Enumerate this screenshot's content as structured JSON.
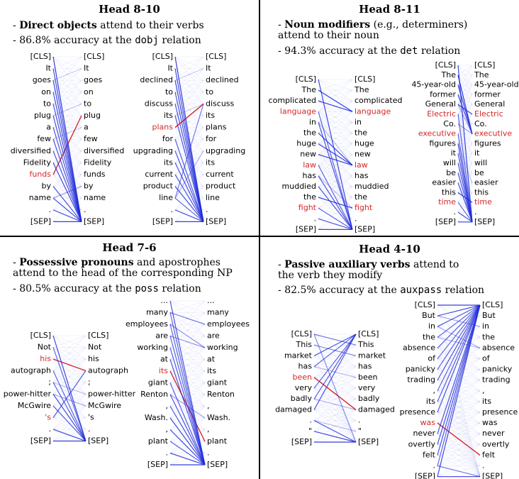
{
  "colors": {
    "attn": "#1f2bd8",
    "highlight": "#d62728",
    "text": "#000000",
    "divider": "#000000"
  },
  "panels": [
    {
      "id": "p1",
      "head_title": "Head 8-10",
      "bullets": [
        {
          "bold": "Direct objects",
          "rest": " attend to their verbs"
        },
        {
          "prefix": "86.8% accuracy at the ",
          "code": "dobj",
          "suffix": " relation"
        }
      ],
      "examples": [
        {
          "tokens": [
            "[CLS]",
            "It",
            "goes",
            "on",
            "to",
            "plug",
            "a",
            "few",
            "diversified",
            "Fidelity",
            "funds",
            "by",
            "name",
            ".",
            "[SEP]"
          ],
          "highlight": 10,
          "edges": [
            [
              10,
              5,
              1.0
            ],
            [
              0,
              14,
              0.9
            ],
            [
              1,
              14,
              0.8
            ],
            [
              2,
              14,
              0.85
            ],
            [
              3,
              14,
              0.8
            ],
            [
              4,
              14,
              0.8
            ],
            [
              5,
              14,
              0.8
            ],
            [
              6,
              14,
              0.75
            ],
            [
              7,
              14,
              0.8
            ],
            [
              8,
              14,
              0.8
            ],
            [
              9,
              14,
              0.85
            ],
            [
              11,
              14,
              0.8
            ],
            [
              12,
              14,
              0.85
            ],
            [
              13,
              14,
              0.8
            ],
            [
              14,
              14,
              0.9
            ],
            [
              12,
              11,
              0.45
            ],
            [
              5,
              4,
              0.25
            ],
            [
              7,
              6,
              0.2
            ],
            [
              2,
              1,
              0.2
            ]
          ]
        },
        {
          "tokens": [
            "[CLS]",
            "It",
            "declined",
            "to",
            "discuss",
            "its",
            "plans",
            "for",
            "upgrading",
            "its",
            "current",
            "product",
            "line",
            ".",
            "[SEP]"
          ],
          "highlight": 6,
          "edges": [
            [
              6,
              4,
              1.0
            ],
            [
              12,
              4,
              0.6
            ],
            [
              0,
              14,
              0.9
            ],
            [
              1,
              14,
              0.8
            ],
            [
              2,
              14,
              0.85
            ],
            [
              3,
              14,
              0.8
            ],
            [
              4,
              14,
              0.8
            ],
            [
              5,
              14,
              0.8
            ],
            [
              7,
              14,
              0.75
            ],
            [
              8,
              14,
              0.8
            ],
            [
              9,
              14,
              0.8
            ],
            [
              10,
              14,
              0.8
            ],
            [
              11,
              14,
              0.85
            ],
            [
              12,
              14,
              0.7
            ],
            [
              13,
              14,
              0.8
            ],
            [
              14,
              14,
              0.9
            ],
            [
              12,
              8,
              0.35
            ],
            [
              2,
              1,
              0.2
            ],
            [
              5,
              4,
              0.2
            ]
          ]
        }
      ]
    },
    {
      "id": "p2",
      "head_title": "Head 8-11",
      "bullets": [
        {
          "bold": "Noun modifiers",
          "rest": " (e.g., determiners) attend to their noun"
        },
        {
          "prefix": "94.3% accuracy at the ",
          "code": "det",
          "suffix": " relation"
        }
      ],
      "examples": [
        {
          "tokens": [
            "[CLS]",
            "The",
            "complicated",
            "language",
            "in",
            "the",
            "huge",
            "new",
            "law",
            "has",
            "muddied",
            "the",
            "fight",
            ".",
            "[SEP]"
          ],
          "highlight": [
            3,
            8,
            12
          ],
          "edges": [
            [
              1,
              3,
              0.9
            ],
            [
              2,
              3,
              0.9
            ],
            [
              5,
              8,
              0.9
            ],
            [
              6,
              8,
              0.9
            ],
            [
              7,
              8,
              0.9
            ],
            [
              11,
              12,
              0.9
            ],
            [
              0,
              14,
              0.85
            ],
            [
              3,
              14,
              0.7
            ],
            [
              4,
              14,
              0.8
            ],
            [
              8,
              14,
              0.7
            ],
            [
              9,
              14,
              0.8
            ],
            [
              10,
              14,
              0.8
            ],
            [
              12,
              14,
              0.7
            ],
            [
              13,
              14,
              0.8
            ],
            [
              14,
              14,
              0.9
            ],
            [
              4,
              8,
              0.3
            ],
            [
              9,
              12,
              0.25
            ]
          ]
        },
        {
          "tokens": [
            "[CLS]",
            "The",
            "45-year-old",
            "former",
            "General",
            "Electric",
            "Co.",
            "executive",
            "figures",
            "it",
            "will",
            "be",
            "easier",
            "this",
            "time",
            ".",
            "[SEP]"
          ],
          "highlight": [
            5,
            7,
            14
          ],
          "edges": [
            [
              1,
              7,
              0.95
            ],
            [
              2,
              7,
              0.9
            ],
            [
              3,
              7,
              0.9
            ],
            [
              4,
              5,
              0.85
            ],
            [
              4,
              7,
              0.4
            ],
            [
              6,
              7,
              0.4
            ],
            [
              13,
              14,
              0.9
            ],
            [
              0,
              16,
              0.85
            ],
            [
              5,
              16,
              0.7
            ],
            [
              7,
              16,
              0.7
            ],
            [
              8,
              16,
              0.8
            ],
            [
              9,
              16,
              0.8
            ],
            [
              10,
              16,
              0.8
            ],
            [
              11,
              16,
              0.8
            ],
            [
              12,
              16,
              0.8
            ],
            [
              14,
              16,
              0.7
            ],
            [
              15,
              16,
              0.8
            ],
            [
              16,
              16,
              0.9
            ],
            [
              8,
              12,
              0.25
            ]
          ]
        }
      ]
    },
    {
      "id": "p3",
      "head_title": "Head 7-6",
      "bullets": [
        {
          "bold": "Possessive pronouns",
          "rest": " and apostrophes attend to the head of the corresponding NP"
        },
        {
          "prefix": "80.5% accuracy at the ",
          "code": "poss",
          "suffix": " relation"
        }
      ],
      "examples": [
        {
          "tokens": [
            "[CLS]",
            "Not",
            "his",
            "autograph",
            ";",
            "power-hitter",
            "McGwire",
            "'s",
            ".",
            "[SEP]"
          ],
          "highlight": [
            2,
            7
          ],
          "edges": [
            [
              2,
              3,
              1.0
            ],
            [
              7,
              3,
              0.75
            ],
            [
              0,
              9,
              0.85
            ],
            [
              1,
              9,
              0.7
            ],
            [
              3,
              9,
              0.7
            ],
            [
              4,
              9,
              0.75
            ],
            [
              5,
              9,
              0.8
            ],
            [
              6,
              9,
              0.8
            ],
            [
              8,
              9,
              0.8
            ],
            [
              9,
              9,
              0.9
            ],
            [
              5,
              6,
              0.35
            ],
            [
              4,
              5,
              0.25
            ]
          ]
        },
        {
          "tokens": [
            "...",
            "many",
            "employees",
            "are",
            "working",
            "at",
            "its",
            "giant",
            "Renton",
            ",",
            "Wash.",
            ",",
            "plant",
            ".",
            "[SEP]"
          ],
          "highlight": 6,
          "edges": [
            [
              6,
              12,
              1.0
            ],
            [
              1,
              2,
              0.6
            ],
            [
              2,
              4,
              0.5
            ],
            [
              3,
              4,
              0.45
            ],
            [
              0,
              14,
              0.8
            ],
            [
              1,
              14,
              0.7
            ],
            [
              2,
              14,
              0.7
            ],
            [
              3,
              14,
              0.7
            ],
            [
              4,
              14,
              0.75
            ],
            [
              5,
              14,
              0.8
            ],
            [
              7,
              14,
              0.75
            ],
            [
              8,
              14,
              0.8
            ],
            [
              9,
              14,
              0.8
            ],
            [
              10,
              14,
              0.85
            ],
            [
              11,
              14,
              0.85
            ],
            [
              12,
              14,
              0.75
            ],
            [
              13,
              14,
              0.85
            ],
            [
              14,
              14,
              0.9
            ],
            [
              8,
              10,
              0.4
            ]
          ]
        }
      ]
    },
    {
      "id": "p4",
      "head_title": "Head 4-10",
      "bullets": [
        {
          "bold": "Passive auxiliary verbs",
          "rest": " attend to the verb they modify"
        },
        {
          "prefix": "82.5% accuracy at the ",
          "code": "auxpass",
          "suffix": " relation"
        }
      ],
      "examples": [
        {
          "tokens": [
            "[CLS]",
            "This",
            "market",
            "has",
            "been",
            "very",
            "badly",
            "damaged",
            ".",
            "\"",
            "[SEP]"
          ],
          "highlight": 4,
          "edges": [
            [
              4,
              7,
              1.0
            ],
            [
              0,
              1,
              0.6
            ],
            [
              1,
              2,
              0.55
            ],
            [
              2,
              0,
              0.8
            ],
            [
              3,
              0,
              0.7
            ],
            [
              5,
              0,
              0.7
            ],
            [
              6,
              0,
              0.75
            ],
            [
              7,
              0,
              0.8
            ],
            [
              8,
              10,
              0.8
            ],
            [
              9,
              10,
              0.85
            ],
            [
              10,
              10,
              0.9
            ],
            [
              0,
              10,
              0.5
            ],
            [
              3,
              4,
              0.3
            ],
            [
              6,
              7,
              0.35
            ],
            [
              8,
              9,
              0.3
            ]
          ]
        },
        {
          "tokens": [
            "[CLS]",
            "But",
            "in",
            "the",
            "absence",
            "of",
            "panicky",
            "trading",
            ",",
            "its",
            "presence",
            "was",
            "never",
            "overtly",
            "felt",
            ".",
            "[SEP]"
          ],
          "highlight": 11,
          "edges": [
            [
              11,
              14,
              1.0
            ],
            [
              0,
              0,
              0.9
            ],
            [
              1,
              0,
              0.8
            ],
            [
              2,
              0,
              0.8
            ],
            [
              3,
              0,
              0.7
            ],
            [
              4,
              0,
              0.75
            ],
            [
              5,
              0,
              0.7
            ],
            [
              6,
              0,
              0.75
            ],
            [
              7,
              0,
              0.8
            ],
            [
              8,
              0,
              0.7
            ],
            [
              9,
              0,
              0.75
            ],
            [
              10,
              0,
              0.8
            ],
            [
              12,
              0,
              0.8
            ],
            [
              13,
              0,
              0.8
            ],
            [
              14,
              0,
              0.8
            ],
            [
              15,
              0,
              0.7
            ],
            [
              16,
              0,
              0.85
            ],
            [
              2,
              4,
              0.35
            ],
            [
              1,
              2,
              0.4
            ],
            [
              3,
              4,
              0.3
            ],
            [
              15,
              16,
              0.6
            ],
            [
              16,
              16,
              0.8
            ]
          ]
        }
      ]
    }
  ]
}
